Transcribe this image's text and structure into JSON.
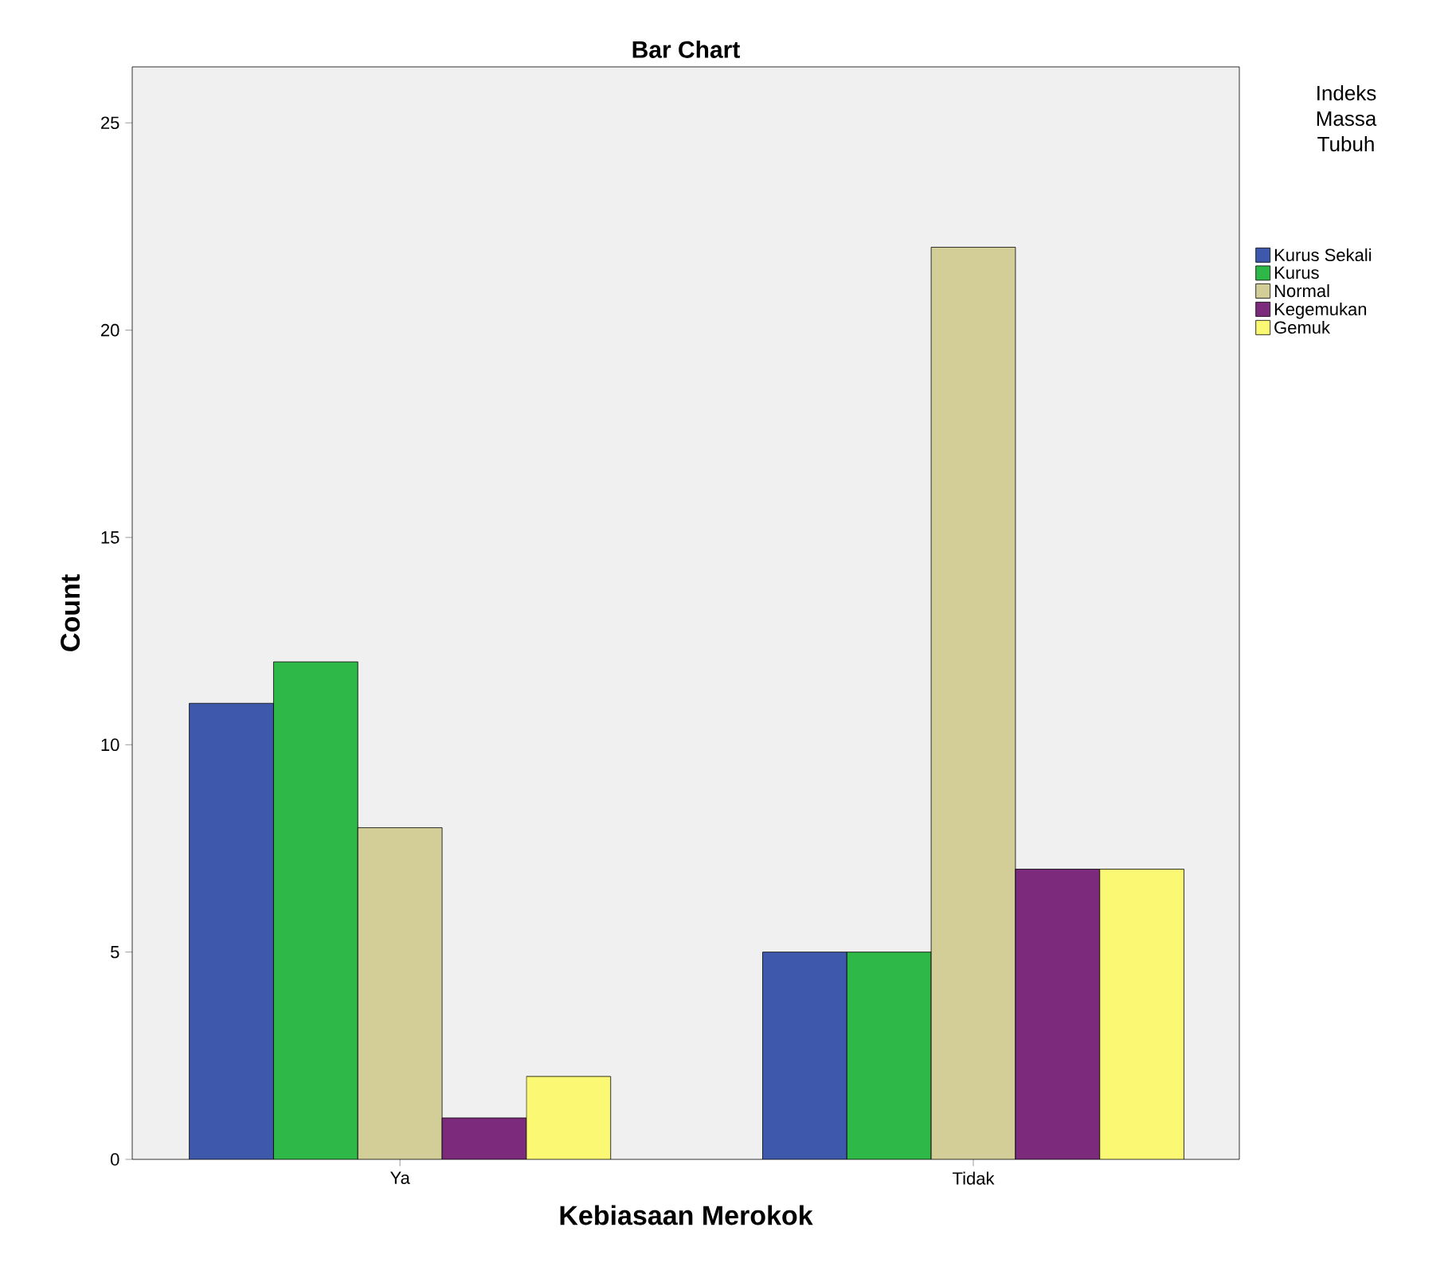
{
  "chart_data": {
    "type": "bar",
    "title": "Bar Chart",
    "xlabel": "Kebiasaan Merokok",
    "ylabel": "Count",
    "legend_title": "Indeks Massa Tubuh",
    "categories": [
      "Ya",
      "Tidak"
    ],
    "series": [
      {
        "name": "Kurus Sekali",
        "color": "#3e58ac",
        "values": [
          11,
          5
        ]
      },
      {
        "name": "Kurus",
        "color": "#2eb848",
        "values": [
          12,
          5
        ]
      },
      {
        "name": "Normal",
        "color": "#d3ce97",
        "values": [
          8,
          22
        ]
      },
      {
        "name": "Kegemukan",
        "color": "#7b2a7c",
        "values": [
          1,
          7
        ]
      },
      {
        "name": "Gemuk",
        "color": "#fbf873",
        "values": [
          2,
          7
        ]
      }
    ],
    "ylim": [
      0,
      26.35
    ],
    "yticks": [
      0,
      5,
      10,
      15,
      20,
      25
    ],
    "grid": false,
    "legend": "right"
  }
}
